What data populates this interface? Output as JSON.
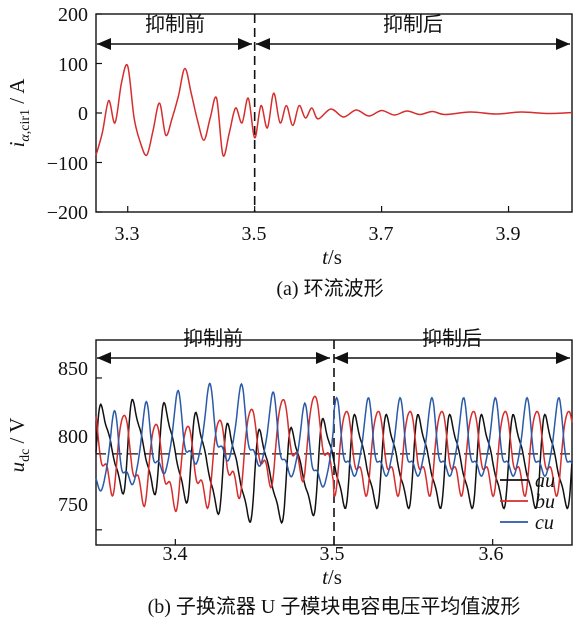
{
  "chart_data": [
    {
      "type": "line",
      "xlim": [
        3.25,
        4.0
      ],
      "ylim": [
        -200,
        200
      ],
      "xticks": [
        "3.3",
        "3.5",
        "3.7",
        "3.9"
      ],
      "yticks": [
        "200",
        "100",
        "0",
        "−100",
        "−200"
      ],
      "xlabel": "t/s",
      "ylabel": "iα,cir1/A",
      "caption": "(a)  环流波形",
      "annotations": [
        "抑制前",
        "抑制后"
      ],
      "divider_x": 3.5,
      "series": [
        {
          "color": "#d62d2d",
          "x": [
            3.25,
            3.26,
            3.27,
            3.28,
            3.29,
            3.3,
            3.31,
            3.32,
            3.33,
            3.34,
            3.35,
            3.36,
            3.37,
            3.38,
            3.39,
            3.4,
            3.41,
            3.42,
            3.43,
            3.44,
            3.45,
            3.46,
            3.47,
            3.48,
            3.49,
            3.5,
            3.51,
            3.52,
            3.53,
            3.54,
            3.55,
            3.56,
            3.57,
            3.58,
            3.59,
            3.6,
            3.62,
            3.64,
            3.66,
            3.68,
            3.7,
            3.72,
            3.74,
            3.76,
            3.78,
            3.8,
            3.84,
            3.88,
            3.92,
            3.96,
            4.0
          ],
          "y": [
            -85,
            -40,
            25,
            -20,
            60,
            95,
            -10,
            -60,
            -85,
            -35,
            20,
            -45,
            -10,
            35,
            90,
            40,
            -15,
            -55,
            -10,
            30,
            -85,
            -40,
            10,
            -20,
            30,
            -50,
            15,
            -30,
            40,
            -20,
            15,
            -25,
            15,
            -10,
            10,
            -12,
            8,
            -8,
            6,
            -6,
            5,
            -4,
            4,
            -3,
            3,
            -3,
            2,
            -2,
            2,
            -1,
            1
          ]
        }
      ]
    },
    {
      "type": "line",
      "xlim": [
        3.35,
        3.65
      ],
      "ylim": [
        740,
        875
      ],
      "xticks": [
        "3.4",
        "3.5",
        "3.6"
      ],
      "yticks": [
        "850",
        "800",
        "750"
      ],
      "xlabel": "t/s",
      "ylabel": "udc/V",
      "caption": "(b)  子换流器 U 子模块电容电压平均值波形",
      "annotations": [
        "抑制前",
        "抑制后"
      ],
      "divider_x": 3.5,
      "reference_y": 800,
      "legend_position": "bottom-right",
      "series": [
        {
          "name": "au",
          "color": "#111111",
          "mean": 795,
          "amp": 26,
          "phase": 0.0
        },
        {
          "name": "bu",
          "color": "#d62d2d",
          "mean": 800,
          "amp": 24,
          "phase": 2.1
        },
        {
          "name": "cu",
          "color": "#2a5aa8",
          "mean": 805,
          "amp": 22,
          "phase": 4.2
        }
      ]
    }
  ]
}
